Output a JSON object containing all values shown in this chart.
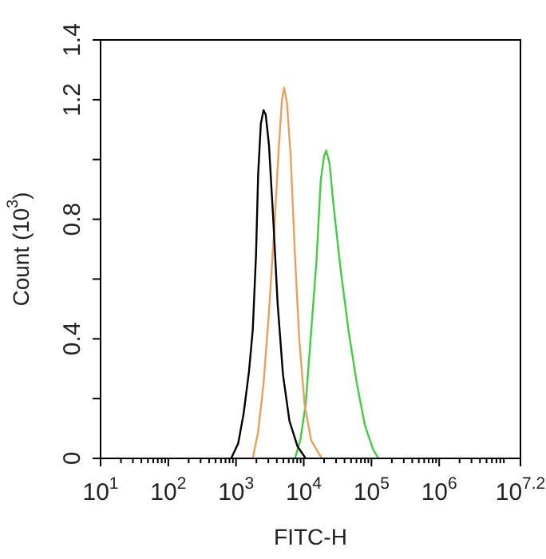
{
  "chart_data": {
    "type": "line",
    "xlabel": "FITC-H",
    "ylabel": "Count (10$^{3}$)",
    "log": "x",
    "grid": false,
    "legend": false,
    "marker": "none",
    "line_style": "solid",
    "xlim": [
      10,
      15848932
    ],
    "ylim": [
      0,
      1.4
    ],
    "xticks": [
      {
        "value": 10,
        "label": "10$^{1}$"
      },
      {
        "value": 100,
        "label": "10$^{2}$"
      },
      {
        "value": 1000,
        "label": "10$^{3}$"
      },
      {
        "value": 10000,
        "label": "10$^{4}$"
      },
      {
        "value": 100000,
        "label": "10$^{5}$"
      },
      {
        "value": 1000000,
        "label": "10$^{6}$"
      },
      {
        "value": 15848932,
        "label": "10$^{7.2}$"
      }
    ],
    "yticks": [
      0,
      {
        "value": 0.2,
        "label": null
      },
      0.4,
      {
        "value": 0.6,
        "label": null
      },
      0.8,
      {
        "value": 1.0,
        "label": null
      },
      1.2,
      1.4
    ],
    "series": [
      {
        "color": "#000000",
        "x": [
          847,
          1077,
          1295,
          1553,
          1767,
          1973,
          2122,
          2326,
          2549,
          2743,
          3062,
          3548,
          4110,
          4936,
          6150,
          8098,
          10660
        ],
        "values": [
          0,
          0.05,
          0.15,
          0.29,
          0.43,
          0.68,
          0.95,
          1.12,
          1.165,
          1.15,
          1.05,
          0.8,
          0.52,
          0.28,
          0.125,
          0.04,
          0
        ]
      },
      {
        "color": "#e8a060",
        "x": [
          1767,
          2122,
          2549,
          3062,
          3677,
          4253,
          4772,
          5138,
          5642,
          6411,
          7413,
          8567,
          10283,
          12870,
          18490
        ],
        "values": [
          0,
          0.09,
          0.25,
          0.49,
          0.77,
          1.03,
          1.2,
          1.24,
          1.19,
          1.01,
          0.68,
          0.4,
          0.18,
          0.06,
          0
        ]
      },
      {
        "color": "#44cc44",
        "x": [
          7400,
          8880,
          10660,
          12820,
          15390,
          17820,
          19900,
          21400,
          23900,
          27700,
          35100,
          46300,
          60900,
          80100,
          105700,
          127000
        ],
        "values": [
          0,
          0.06,
          0.18,
          0.42,
          0.66,
          0.93,
          1.01,
          1.03,
          0.99,
          0.84,
          0.63,
          0.42,
          0.25,
          0.11,
          0.03,
          0
        ]
      }
    ]
  }
}
